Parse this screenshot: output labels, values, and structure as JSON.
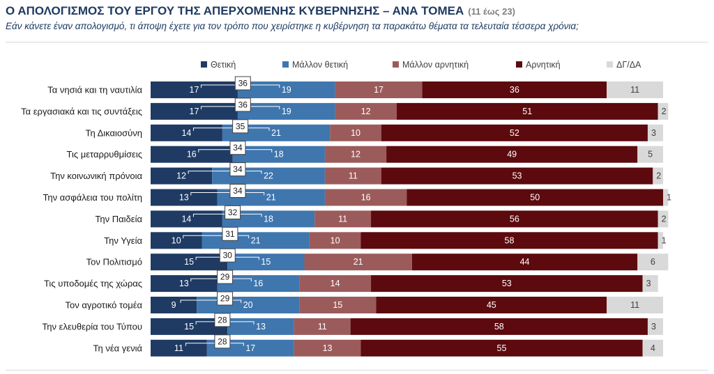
{
  "header": {
    "title": "Ο ΑΠΟΛΟΓΙΣΜΟΣ ΤΟΥ ΕΡΓΟΥ ΤΗΣ ΑΠΕΡΧΟΜΕΝΗΣ ΚΥΒΕΡΝΗΣΗΣ – ΑΝΑ ΤΟΜΕΑ",
    "range": "(11 έως 23)",
    "question": "Εάν κάνετε έναν απολογισμό, τι άποψη έχετε για τον τρόπο που χειρίστηκε η κυβέρνηση τα παρακάτω θέματα τα τελευταία τέσσερα χρόνια;"
  },
  "chart_data": {
    "type": "bar",
    "orientation": "horizontal",
    "stacked": true,
    "legend_position": "top",
    "categories": [
      "Τα νησιά και τη ναυτιλία",
      "Τα εργασιακά και τις συντάξεις",
      "Τη Δικαιοσύνη",
      "Τις μεταρρυθμίσεις",
      "Την κοινωνική πρόνοια",
      "Την ασφάλεια του πολίτη",
      "Την Παιδεία",
      "Την Υγεία",
      "Τον Πολιτισμό",
      "Τις υποδομές της χώρας",
      "Τον αγροτικό τομέα",
      "Την ελευθερία του Τύπου",
      "Τη νέα γενιά"
    ],
    "series": [
      {
        "name": "Θετική",
        "color": "#1f3b64",
        "values": [
          17,
          17,
          14,
          16,
          12,
          13,
          14,
          10,
          15,
          13,
          9,
          15,
          11
        ]
      },
      {
        "name": "Μάλλον θετική",
        "color": "#3f76ae",
        "values": [
          19,
          19,
          21,
          18,
          22,
          21,
          18,
          21,
          15,
          16,
          20,
          13,
          17
        ]
      },
      {
        "name": "Μάλλον αρνητική",
        "color": "#9c5b5b",
        "values": [
          17,
          12,
          10,
          12,
          11,
          16,
          11,
          10,
          21,
          14,
          15,
          11,
          13
        ]
      },
      {
        "name": "Αρνητική",
        "color": "#5c0a0e",
        "values": [
          36,
          51,
          52,
          49,
          53,
          50,
          56,
          58,
          44,
          53,
          45,
          58,
          55
        ]
      },
      {
        "name": "ΔΓ/ΔΑ",
        "color": "#d9d9d9",
        "values": [
          11,
          2,
          3,
          5,
          2,
          1,
          2,
          1,
          6,
          3,
          11,
          3,
          4
        ]
      }
    ],
    "positive_totals": [
      36,
      36,
      35,
      34,
      34,
      34,
      32,
      31,
      30,
      29,
      29,
      28,
      28
    ]
  }
}
